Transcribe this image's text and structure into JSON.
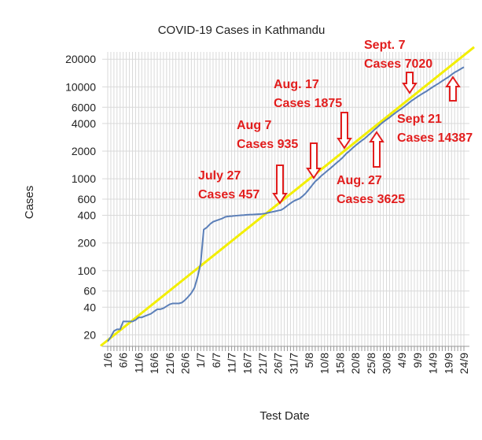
{
  "chart_data": {
    "type": "line",
    "title": "COVID-19 Cases in Kathmandu",
    "x_label": "Test Date",
    "y_label": "Cases",
    "categories": [
      "1/6",
      null,
      null,
      null,
      null,
      "6/6",
      null,
      null,
      null,
      null,
      "11/6",
      null,
      null,
      null,
      null,
      "16/6",
      null,
      null,
      null,
      null,
      "21/6",
      null,
      null,
      null,
      null,
      "26/6",
      null,
      null,
      null,
      null,
      "1/7",
      null,
      null,
      null,
      null,
      "6/7",
      null,
      null,
      null,
      null,
      "11/7",
      null,
      null,
      null,
      null,
      "16/7",
      null,
      null,
      null,
      null,
      "21/7",
      null,
      null,
      null,
      null,
      "26/7",
      null,
      null,
      null,
      null,
      "31/7",
      null,
      null,
      null,
      null,
      "5/8",
      null,
      null,
      null,
      null,
      "10/8",
      null,
      null,
      null,
      null,
      "15/8",
      null,
      null,
      null,
      null,
      "20/8",
      null,
      null,
      null,
      null,
      "25/8",
      null,
      null,
      null,
      null,
      "30/8",
      null,
      null,
      null,
      null,
      "4/9",
      null,
      null,
      null,
      null,
      "9/9",
      null,
      null,
      null,
      null,
      "14/9",
      null,
      null,
      null,
      null,
      "19/9",
      null,
      null,
      null,
      null,
      "24/9"
    ],
    "series": [
      {
        "color": "#5b7fb8",
        "values": [
          17,
          19,
          22,
          23,
          23,
          28,
          28,
          28,
          28,
          29,
          31,
          31,
          32,
          33,
          34,
          36,
          38,
          38,
          39,
          41,
          43,
          44,
          44,
          44,
          45,
          48,
          52,
          57,
          65,
          85,
          120,
          280,
          295,
          320,
          340,
          350,
          360,
          370,
          385,
          390,
          392,
          395,
          398,
          400,
          402,
          405,
          407,
          408,
          410,
          412,
          415,
          420,
          428,
          435,
          442,
          450,
          457,
          480,
          510,
          540,
          570,
          590,
          610,
          650,
          700,
          770,
          850,
          935,
          1000,
          1080,
          1150,
          1230,
          1310,
          1400,
          1500,
          1600,
          1720,
          1875,
          2000,
          2150,
          2300,
          2450,
          2600,
          2750,
          2950,
          3150,
          3400,
          3625,
          3900,
          4150,
          4400,
          4650,
          4950,
          5250,
          5550,
          5850,
          6200,
          6600,
          7020,
          7400,
          7800,
          8200,
          8600,
          9000,
          9500,
          10000,
          10500,
          11000,
          11600,
          12200,
          12800,
          13600,
          14387,
          15000,
          15700,
          16400
        ]
      }
    ],
    "trendline": {
      "color": "#f2ee00",
      "start": 17.5,
      "end": 22100
    },
    "log_y": true,
    "ylim": [
      15,
      24000
    ],
    "yticks": [
      20,
      40,
      60,
      100,
      200,
      400,
      600,
      1000,
      2000,
      4000,
      6000,
      10000,
      20000
    ],
    "grid": true,
    "annotations": [
      {
        "lines": [
          "July 27",
          "Cases 457"
        ]
      },
      {
        "lines": [
          "Aug 7",
          "Cases 935"
        ]
      },
      {
        "lines": [
          "Aug. 17",
          "Cases 1875"
        ]
      },
      {
        "lines": [
          "Aug. 27",
          "Cases 3625"
        ]
      },
      {
        "lines": [
          "Sept. 7",
          "Cases 7020"
        ]
      },
      {
        "lines": [
          "Sept 21",
          "Cases 14387"
        ]
      }
    ],
    "annotation_color": "#e21d1d"
  }
}
